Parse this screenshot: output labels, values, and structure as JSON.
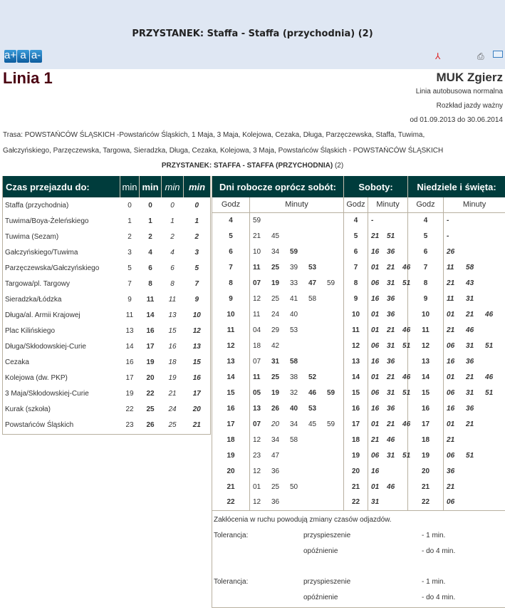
{
  "header": {
    "title": "PRZYSTANEK: Staffa - Staffa (przychodnia) (2)",
    "font_buttons": [
      "a+",
      "a",
      "a-"
    ],
    "icons": [
      "pdf-icon",
      "print-icon",
      "email-icon"
    ]
  },
  "line": {
    "name": "Linia 1",
    "operator": "MUK Zgierz",
    "type": "Linia autobusowa normalna",
    "valid_label": "Rozkład jazdy ważny",
    "valid_range": "od 01.09.2013 do 30.06.2014",
    "route_line1": "Trasa: POWSTAŃCÓW ŚLĄSKICH -Powstańców Śląskich, 1 Maja, 3 Maja, Kolejowa, Cezaka, Długa, Parzęczewska, Staffa, Tuwima,",
    "route_line2": "Gałczyńskiego, Parzęczewska, Targowa, Sieradzka, Długa, Cezaka, Kolejowa, 3 Maja, Powstańców Śląskich - POWSTAŃCÓW ŚLĄSKICH",
    "stop_label": "PRZYSTANEK: STAFFA - STAFFA (PRZYCHODNIA)",
    "stop_number": "(2)"
  },
  "travel": {
    "header": "Czas przejazdu do:",
    "min_headers": [
      "min",
      "min",
      "min",
      "min"
    ],
    "rows": [
      [
        "Staffa (przychodnia)",
        "0",
        "0",
        "0",
        "0"
      ],
      [
        "Tuwima/Boya-Żeleńskiego",
        "1",
        "1",
        "1",
        "1"
      ],
      [
        "Tuwima (Sezam)",
        "2",
        "2",
        "2",
        "2"
      ],
      [
        "Gałczyńskiego/Tuwima",
        "3",
        "4",
        "4",
        "3"
      ],
      [
        "Parzęczewska/Gałczyńskiego",
        "5",
        "6",
        "6",
        "5"
      ],
      [
        "Targowa/pl. Targowy",
        "7",
        "8",
        "8",
        "7"
      ],
      [
        "Sieradzka/Łódzka",
        "9",
        "11",
        "11",
        "9"
      ],
      [
        "Długa/al. Armii Krajowej",
        "11",
        "14",
        "13",
        "10"
      ],
      [
        "Plac Kilińskiego",
        "13",
        "16",
        "15",
        "12"
      ],
      [
        "Długa/Skłodowskiej-Curie",
        "14",
        "17",
        "16",
        "13"
      ],
      [
        "Cezaka",
        "16",
        "19",
        "18",
        "15"
      ],
      [
        "Kolejowa (dw. PKP)",
        "17",
        "20",
        "19",
        "16"
      ],
      [
        "3 Maja/Skłodowskiej-Curie",
        "19",
        "22",
        "21",
        "17"
      ],
      [
        "Kurak (szkoła)",
        "22",
        "25",
        "24",
        "20"
      ],
      [
        "Powstańców Śląskich",
        "23",
        "26",
        "25",
        "21"
      ]
    ]
  },
  "timetable": {
    "headers": [
      "Dni robocze oprócz sobót:",
      "Soboty:",
      "Niedziele i święta:"
    ],
    "godz": "Godz",
    "minuty": "Minuty",
    "hours": [
      "4",
      "5",
      "6",
      "7",
      "8",
      "9",
      "10",
      "11",
      "12",
      "13",
      "14",
      "15",
      "16",
      "17",
      "18",
      "19",
      "20",
      "21",
      "22"
    ],
    "weekdays": [
      [
        [
          "59",
          ""
        ]
      ],
      [
        [
          "21",
          ""
        ],
        [
          "45",
          ""
        ]
      ],
      [
        [
          "10",
          ""
        ],
        [
          "34",
          ""
        ],
        [
          "59",
          "b"
        ]
      ],
      [
        [
          "11",
          "b"
        ],
        [
          "25",
          "b"
        ],
        [
          "39",
          ""
        ],
        [
          "53",
          "b"
        ]
      ],
      [
        [
          "07",
          "b"
        ],
        [
          "19",
          "b"
        ],
        [
          "33",
          ""
        ],
        [
          "47",
          "b"
        ],
        [
          "59",
          ""
        ]
      ],
      [
        [
          "12",
          ""
        ],
        [
          "25",
          ""
        ],
        [
          "41",
          ""
        ],
        [
          "58",
          ""
        ]
      ],
      [
        [
          "11",
          ""
        ],
        [
          "24",
          ""
        ],
        [
          "40",
          ""
        ]
      ],
      [
        [
          "04",
          ""
        ],
        [
          "29",
          ""
        ],
        [
          "53",
          ""
        ]
      ],
      [
        [
          "18",
          ""
        ],
        [
          "42",
          ""
        ]
      ],
      [
        [
          "07",
          ""
        ],
        [
          "31",
          "b"
        ],
        [
          "58",
          "b"
        ]
      ],
      [
        [
          "11",
          "b"
        ],
        [
          "25",
          "b"
        ],
        [
          "38",
          ""
        ],
        [
          "52",
          "b"
        ]
      ],
      [
        [
          "05",
          "b"
        ],
        [
          "19",
          "b"
        ],
        [
          "32",
          ""
        ],
        [
          "46",
          "b"
        ],
        [
          "59",
          "b"
        ]
      ],
      [
        [
          "13",
          "b"
        ],
        [
          "26",
          "b"
        ],
        [
          "40",
          "b"
        ],
        [
          "53",
          "b"
        ]
      ],
      [
        [
          "07",
          "b"
        ],
        [
          "20",
          "i"
        ],
        [
          "34",
          ""
        ],
        [
          "45",
          ""
        ],
        [
          "59",
          ""
        ]
      ],
      [
        [
          "12",
          ""
        ],
        [
          "34",
          ""
        ],
        [
          "58",
          ""
        ]
      ],
      [
        [
          "23",
          ""
        ],
        [
          "47",
          ""
        ]
      ],
      [
        [
          "12",
          ""
        ],
        [
          "36",
          ""
        ]
      ],
      [
        [
          "01",
          ""
        ],
        [
          "25",
          ""
        ],
        [
          "50",
          ""
        ]
      ],
      [
        [
          "12",
          ""
        ],
        [
          "36",
          ""
        ]
      ]
    ],
    "saturdays": [
      [
        "-"
      ],
      [
        "21",
        "51"
      ],
      [
        "16",
        "36"
      ],
      [
        "01",
        "21",
        "46"
      ],
      [
        "06",
        "31",
        "51"
      ],
      [
        "16",
        "36"
      ],
      [
        "01",
        "36"
      ],
      [
        "01",
        "21",
        "46"
      ],
      [
        "06",
        "31",
        "51"
      ],
      [
        "16",
        "36"
      ],
      [
        "01",
        "21",
        "46"
      ],
      [
        "06",
        "31",
        "51"
      ],
      [
        "16",
        "36"
      ],
      [
        "01",
        "21",
        "46"
      ],
      [
        "21",
        "46"
      ],
      [
        "06",
        "31",
        "51"
      ],
      [
        "16"
      ],
      [
        "01",
        "46"
      ],
      [
        "31"
      ]
    ],
    "sundays": [
      [
        "-"
      ],
      [
        "-"
      ],
      [
        "26"
      ],
      [
        "11",
        "58"
      ],
      [
        "21",
        "43"
      ],
      [
        "11",
        "31"
      ],
      [
        "01",
        "21",
        "46"
      ],
      [
        "21",
        "46"
      ],
      [
        "06",
        "31",
        "51"
      ],
      [
        "16",
        "36"
      ],
      [
        "01",
        "21",
        "46"
      ],
      [
        "06",
        "31",
        "51"
      ],
      [
        "16",
        "36"
      ],
      [
        "01",
        "21"
      ],
      [
        "21"
      ],
      [
        "06",
        "51"
      ],
      [
        "36"
      ],
      [
        "21"
      ],
      [
        "06"
      ]
    ]
  },
  "notes": {
    "disruption": "Zakłócenia w ruchu powodują zmiany czasów odjazdów.",
    "tolerance": [
      {
        "label": "Tolerancja:",
        "early": "przyspieszenie",
        "early_val": "- 1 min.",
        "late": "opóźnienie",
        "late_val": "- do 4 min."
      },
      {
        "label": "Tolerancja:",
        "early": "przyspieszenie",
        "early_val": "- 1 min.",
        "late": "opóźnienie",
        "late_val": "- do 4 min."
      }
    ]
  },
  "colors": {
    "header_bg": "#003c3c",
    "band_bg": "#dfe7f3",
    "line_title": "#4a0010"
  }
}
